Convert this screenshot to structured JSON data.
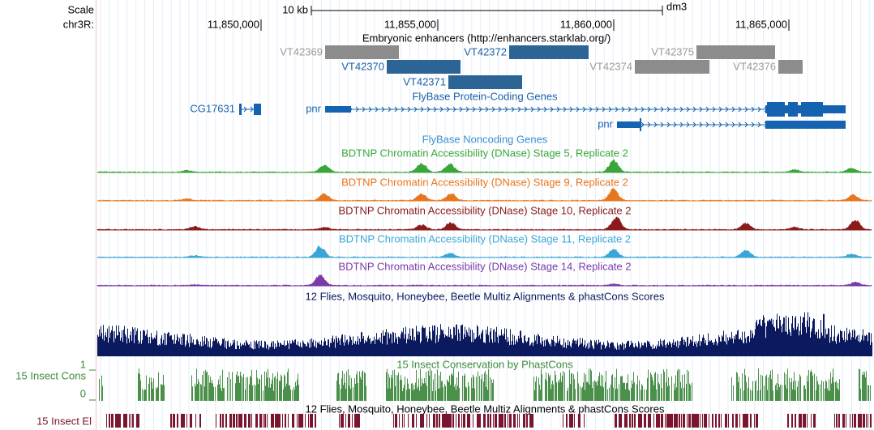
{
  "header": {
    "scale_label": "Scale",
    "chrom_label": "chr3R:",
    "scale_bar": "10 kb",
    "assembly": "dm3",
    "positions": [
      "11,850,000",
      "11,855,000",
      "11,860,000",
      "11,865,000"
    ]
  },
  "tracks": {
    "enhancers": {
      "title": "Embryonic enhancers (http://enhancers.starklab.org/)",
      "items": [
        {
          "label": "VT42369"
        },
        {
          "label": "VT42370"
        },
        {
          "label": "VT42371"
        },
        {
          "label": "VT42372"
        },
        {
          "label": "VT42374"
        },
        {
          "label": "VT42375"
        },
        {
          "label": "VT42376"
        }
      ]
    },
    "genes": {
      "title": "FlyBase Protein-Coding Genes",
      "items": [
        {
          "label": "CG17631"
        },
        {
          "label": "pnr"
        },
        {
          "label": "pnr"
        }
      ]
    },
    "noncoding": {
      "title": "FlyBase Noncoding Genes"
    },
    "dnase": [
      {
        "title": "BDTNP Chromatin Accessibility (DNase) Stage 5, Replicate 2"
      },
      {
        "title": "BDTNP Chromatin Accessibility (DNase) Stage 9, Replicate 2"
      },
      {
        "title": "BDTNP Chromatin Accessibility (DNase) Stage 10, Replicate 2"
      },
      {
        "title": "BDTNP Chromatin Accessibility (DNase) Stage 11, Replicate 2"
      },
      {
        "title": "BDTNP Chromatin Accessibility (DNase) Stage 14, Replicate 2"
      }
    ],
    "multiz": {
      "title": "12 Flies, Mosquito, Honeybee, Beetle Multiz Alignments & phastCons Scores"
    },
    "cons": {
      "title": "15 Insect Conservation by PhastCons",
      "left_label": "15 Insect Cons",
      "ymax": "1",
      "ymin": "0"
    },
    "elements": {
      "title": "12 Flies, Mosquito, Honeybee, Beetle Multiz Alignments & phastCons Scores",
      "left_label": "15 Insect El"
    }
  }
}
